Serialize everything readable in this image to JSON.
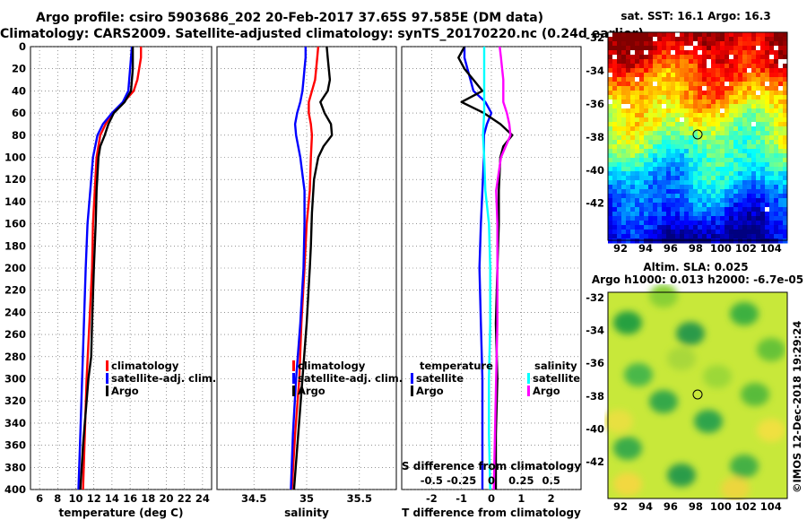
{
  "title_line1": "Argo profile: csiro 5903686_202 20-Feb-2017 37.65S 97.585E (DM data)",
  "title_line2": "Climatology: CARS2009. Satellite-adjusted climatology: synTS_20170220.nc (0.24d earlier)",
  "map_sst": {
    "title": "sat. SST: 16.1 Argo: 16.3",
    "xticks": [
      "92",
      "94",
      "96",
      "98",
      "100",
      "102",
      "104"
    ],
    "yticks": [
      "-32",
      "-34",
      "-36",
      "-38",
      "-40",
      "-42"
    ]
  },
  "map_sla": {
    "title1": "Altim. SLA: 0.025",
    "title2": "Argo h1000: 0.013 h2000: -6.7e-05",
    "xticks": [
      "92",
      "94",
      "96",
      "98",
      "100",
      "102",
      "104"
    ],
    "yticks": [
      "-32",
      "-34",
      "-36",
      "-38",
      "-40",
      "-42"
    ]
  },
  "credit": "©IMOS 12-Dec-2018 19:29:24",
  "colors": {
    "climatology": "#ff0000",
    "satellite": "#0000ff",
    "argo": "#000000",
    "sat_salinity": "#00ffff",
    "argo_salinity": "#ff00ff"
  },
  "chart_data": [
    {
      "type": "line",
      "name": "temperature",
      "xlabel": "temperature (deg C)",
      "ylabel": "",
      "xlim": [
        5,
        25
      ],
      "ylim": [
        400,
        0
      ],
      "xticks": [
        6,
        8,
        10,
        12,
        14,
        16,
        18,
        20,
        22,
        24
      ],
      "yticks": [
        0,
        20,
        40,
        60,
        80,
        100,
        120,
        140,
        160,
        180,
        200,
        220,
        240,
        260,
        280,
        300,
        320,
        340,
        360,
        380,
        400
      ],
      "legend": [
        "climatology",
        "satellite-adj. clim.",
        "Argo"
      ],
      "series": [
        {
          "name": "climatology",
          "depth": [
            0,
            10,
            20,
            30,
            40,
            50,
            60,
            70,
            80,
            100,
            130,
            160,
            200,
            250,
            300,
            350,
            400
          ],
          "values": [
            17.2,
            17.2,
            17.0,
            16.8,
            16.4,
            15.3,
            14.0,
            13.3,
            12.7,
            12.3,
            12.1,
            11.9,
            11.8,
            11.5,
            11.2,
            11.0,
            10.8
          ]
        },
        {
          "name": "satellite-adj. clim.",
          "depth": [
            0,
            10,
            20,
            30,
            40,
            50,
            60,
            70,
            80,
            100,
            130,
            160,
            200,
            250,
            300,
            350,
            400
          ],
          "values": [
            16.2,
            16.1,
            16.0,
            15.9,
            15.8,
            15.2,
            14.0,
            13.0,
            12.4,
            11.9,
            11.6,
            11.3,
            11.1,
            10.9,
            10.7,
            10.5,
            10.3
          ]
        },
        {
          "name": "Argo",
          "depth": [
            0,
            10,
            20,
            30,
            40,
            50,
            60,
            70,
            80,
            90,
            100,
            130,
            160,
            200,
            250,
            280,
            300,
            330,
            360,
            400
          ],
          "values": [
            16.3,
            16.3,
            16.3,
            16.2,
            16.1,
            15.4,
            14.2,
            13.6,
            13.2,
            12.7,
            12.5,
            12.3,
            12.2,
            12.0,
            11.8,
            11.7,
            11.4,
            11.1,
            10.8,
            10.5
          ]
        }
      ]
    },
    {
      "type": "line",
      "name": "salinity",
      "xlabel": "salinity",
      "ylabel": "",
      "xlim": [
        34.15,
        35.85
      ],
      "ylim": [
        400,
        0
      ],
      "xticks": [
        34.5,
        35,
        35.5
      ],
      "xticklabels": [
        "34.5",
        "35",
        "35.5"
      ],
      "legend": [
        "climatology",
        "satellite-adj. clim.",
        "Argo"
      ],
      "series": [
        {
          "name": "climatology",
          "depth": [
            0,
            10,
            20,
            30,
            40,
            50,
            60,
            70,
            80,
            100,
            130,
            160,
            200,
            250,
            300,
            350,
            400
          ],
          "values": [
            35.11,
            35.1,
            35.09,
            35.08,
            35.05,
            35.02,
            35.02,
            35.04,
            35.05,
            35.04,
            35.03,
            35.0,
            34.98,
            34.95,
            34.93,
            34.89,
            34.86
          ]
        },
        {
          "name": "satellite-adj. clim.",
          "depth": [
            0,
            10,
            20,
            30,
            40,
            50,
            60,
            70,
            80,
            100,
            130,
            160,
            200,
            250,
            300,
            350,
            400
          ],
          "values": [
            34.99,
            34.99,
            34.98,
            34.97,
            34.96,
            34.94,
            34.91,
            34.89,
            34.9,
            34.94,
            34.98,
            34.98,
            34.97,
            34.94,
            34.9,
            34.87,
            34.85
          ]
        },
        {
          "name": "Argo",
          "depth": [
            0,
            10,
            20,
            30,
            40,
            50,
            60,
            70,
            80,
            90,
            100,
            120,
            150,
            180,
            200,
            250,
            300,
            350,
            400
          ],
          "values": [
            35.19,
            35.2,
            35.21,
            35.22,
            35.2,
            35.13,
            35.17,
            35.23,
            35.24,
            35.16,
            35.11,
            35.07,
            35.05,
            35.04,
            35.03,
            35.0,
            34.96,
            34.92,
            34.88
          ]
        }
      ]
    },
    {
      "type": "line",
      "name": "difference",
      "xlabel": "T difference from climatology",
      "top_label": "S difference from climatology",
      "xlim": [
        -3,
        3
      ],
      "ylim": [
        400,
        0
      ],
      "xticks": [
        -2,
        -1,
        0,
        1,
        2
      ],
      "xticklabels": [
        "-2",
        "-1",
        "0",
        "1",
        "2"
      ],
      "top_ticks": [
        -0.5,
        -0.25,
        0,
        0.25,
        0.5
      ],
      "top_ticklabels": [
        "-0.5",
        "-0.25",
        "0",
        "0.25",
        "0.5"
      ],
      "legend_temperature_title": "temperature",
      "legend_salinity_title": "salinity",
      "legend_temperature": [
        "satellite",
        "Argo"
      ],
      "legend_salinity": [
        "satellite",
        "Argo"
      ],
      "series": [
        {
          "name": "T satellite",
          "depth": [
            0,
            10,
            20,
            30,
            40,
            50,
            60,
            70,
            80,
            100,
            130,
            160,
            200,
            250,
            300,
            350,
            400
          ],
          "values": [
            -0.9,
            -0.9,
            -0.8,
            -0.7,
            -0.6,
            -0.2,
            0.0,
            -0.15,
            -0.25,
            -0.25,
            -0.3,
            -0.35,
            -0.4,
            -0.35,
            -0.3,
            -0.3,
            -0.3
          ]
        },
        {
          "name": "T Argo",
          "depth": [
            0,
            10,
            20,
            30,
            40,
            50,
            60,
            70,
            80,
            90,
            100,
            130,
            160,
            200,
            250,
            300,
            350,
            400
          ],
          "values": [
            -0.9,
            -1.1,
            -0.9,
            -0.6,
            -0.3,
            -1.0,
            -0.25,
            0.3,
            0.7,
            0.4,
            0.3,
            0.25,
            0.25,
            0.2,
            0.15,
            0.2,
            0.15,
            0.15
          ]
        },
        {
          "name": "S satellite",
          "depth": [
            0,
            20,
            40,
            60,
            80,
            100,
            130,
            160,
            200,
            250,
            300,
            350,
            400
          ],
          "values": [
            -0.06,
            -0.06,
            -0.06,
            -0.06,
            -0.07,
            -0.06,
            -0.05,
            -0.02,
            -0.01,
            -0.01,
            -0.02,
            -0.02,
            -0.01
          ]
        },
        {
          "name": "S Argo",
          "depth": [
            0,
            10,
            20,
            30,
            40,
            50,
            60,
            70,
            80,
            100,
            130,
            160,
            200,
            250,
            300,
            350,
            400
          ],
          "values": [
            0.07,
            0.08,
            0.09,
            0.1,
            0.1,
            0.1,
            0.13,
            0.15,
            0.16,
            0.08,
            0.04,
            0.05,
            0.05,
            0.05,
            0.04,
            0.03,
            0.02
          ]
        }
      ]
    }
  ]
}
